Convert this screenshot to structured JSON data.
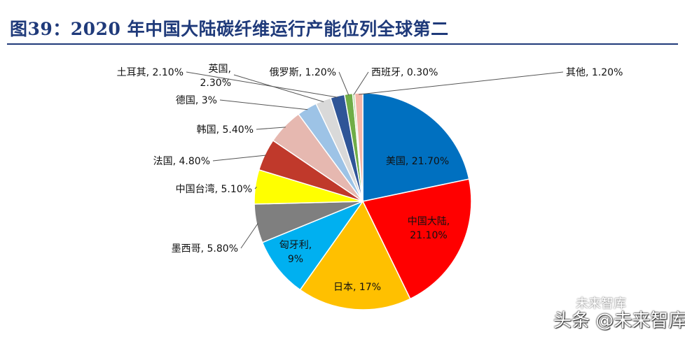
{
  "title": "图39：2020 年中国大陆碳纤维运行产能位列全球第二",
  "watermark": {
    "line1": "未来智库",
    "line2": "头条 @未来智库"
  },
  "chart_data": {
    "type": "pie",
    "title": "",
    "slices": [
      {
        "label": "美国",
        "value": 21.7,
        "text": "美国, 21.70%",
        "color": "#0070c0"
      },
      {
        "label": "中国大陆",
        "value": 21.1,
        "text": "中国大陆, 21.10%",
        "color": "#ff0000"
      },
      {
        "label": "日本",
        "value": 17,
        "text": "日本, 17%",
        "color": "#ffc000"
      },
      {
        "label": "匈牙利",
        "value": 9,
        "text": "匈牙利, 9%",
        "color": "#00b0f0"
      },
      {
        "label": "墨西哥",
        "value": 5.8,
        "text": "墨西哥, 5.80%",
        "color": "#7f7f7f"
      },
      {
        "label": "中国台湾",
        "value": 5.1,
        "text": "中国台湾, 5.10%",
        "color": "#ffff00"
      },
      {
        "label": "法国",
        "value": 4.8,
        "text": "法国, 4.80%",
        "color": "#c0392b"
      },
      {
        "label": "韩国",
        "value": 5.4,
        "text": "韩国, 5.40%",
        "color": "#e6b8b0"
      },
      {
        "label": "德国",
        "value": 3,
        "text": "德国, 3%",
        "color": "#9dc3e6"
      },
      {
        "label": "英国",
        "value": 2.3,
        "text": "英国, 2.30%",
        "color": "#d9d9d9"
      },
      {
        "label": "土耳其",
        "value": 2.1,
        "text": "土耳其, 2.10%",
        "color": "#2f5597"
      },
      {
        "label": "俄罗斯",
        "value": 1.2,
        "text": "俄罗斯, 1.20%",
        "color": "#70ad47"
      },
      {
        "label": "西班牙",
        "value": 0.3,
        "text": "西班牙, 0.30%",
        "color": "#a9d18e"
      },
      {
        "label": "其他",
        "value": 1.2,
        "text": "其他, 1.20%",
        "color": "#f4b6a8"
      }
    ]
  }
}
